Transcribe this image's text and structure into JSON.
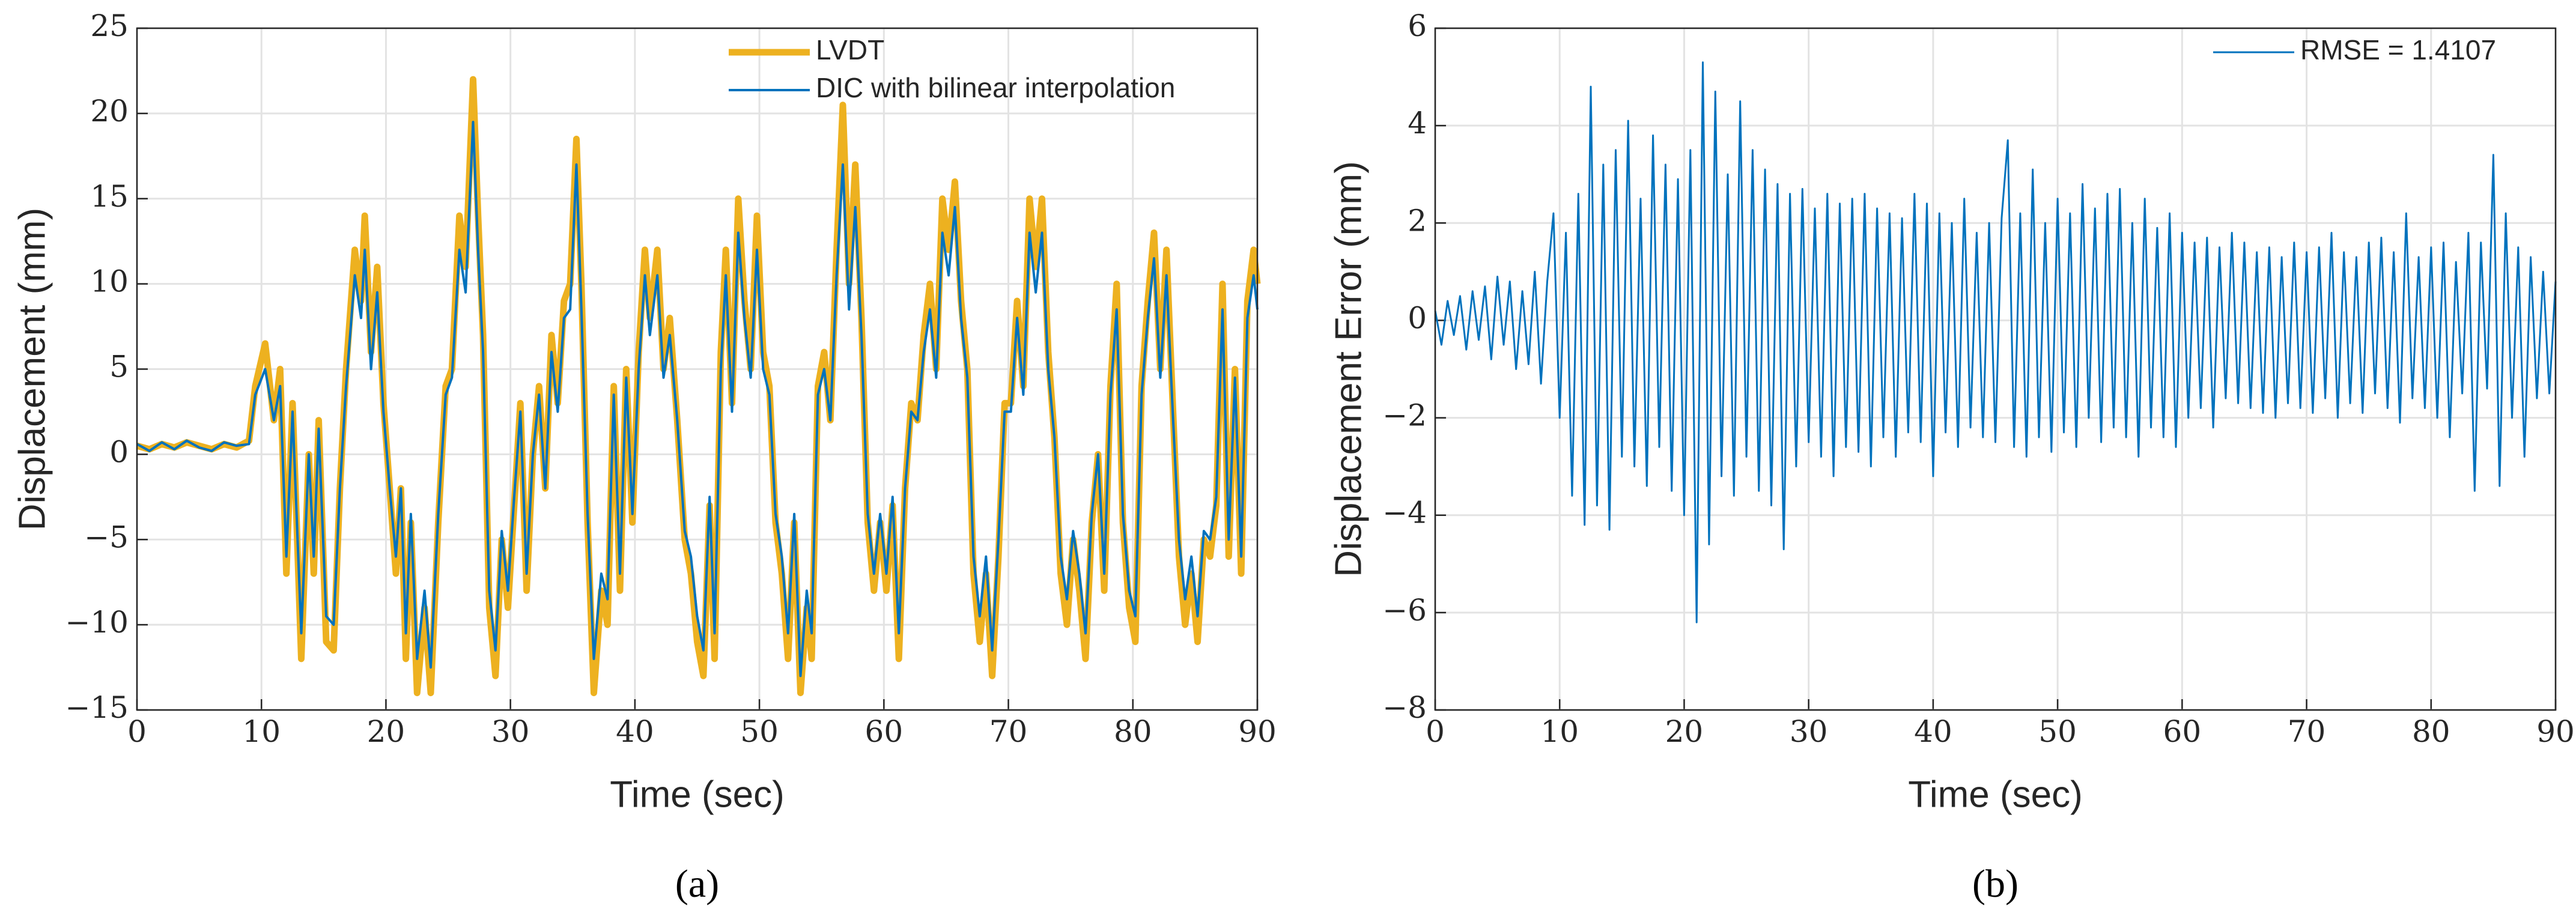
{
  "chart_data": [
    {
      "type": "line",
      "xlabel": "Time (sec)",
      "ylabel": "Displacement (mm)",
      "caption": "(a)",
      "xlim": [
        0,
        90
      ],
      "ylim": [
        -15,
        25
      ],
      "xticks": [
        0,
        10,
        20,
        30,
        40,
        50,
        60,
        70,
        80,
        90
      ],
      "yticks": [
        {
          "value": -15,
          "label": "−15"
        },
        {
          "value": -10,
          "label": "−10"
        },
        {
          "value": -5,
          "label": "−5"
        },
        0,
        5,
        10,
        15,
        20,
        25
      ],
      "grid": true,
      "legend": "northeast",
      "x": [
        0,
        1,
        2,
        3,
        4,
        5,
        6,
        7,
        8,
        9,
        9.5,
        10.3,
        11,
        11.5,
        12,
        12.5,
        13.2,
        13.8,
        14.2,
        14.6,
        15.2,
        15.8,
        16.3,
        16.8,
        17.5,
        18,
        18.3,
        18.8,
        19.3,
        19.8,
        20.3,
        20.8,
        21.2,
        21.6,
        22,
        22.5,
        23.1,
        23.6,
        24.2,
        24.8,
        25.3,
        25.9,
        26.4,
        27,
        27.4,
        27.8,
        28.3,
        28.8,
        29.3,
        29.8,
        30.3,
        30.8,
        31.3,
        31.8,
        32.3,
        32.8,
        33.3,
        33.8,
        34.3,
        34.8,
        35.3,
        35.7,
        36.2,
        36.7,
        37.3,
        37.8,
        38.3,
        38.8,
        39.3,
        39.8,
        40.3,
        40.8,
        41.2,
        41.8,
        42.3,
        42.8,
        43.4,
        44,
        44.5,
        45,
        45.5,
        46,
        46.4,
        46.9,
        47.3,
        47.8,
        48.3,
        48.8,
        49.3,
        49.8,
        50.3,
        50.8,
        51.3,
        51.8,
        52.3,
        52.8,
        53.3,
        53.8,
        54.2,
        54.7,
        55.2,
        55.7,
        56.2,
        56.7,
        57.2,
        57.7,
        58.2,
        58.7,
        59.2,
        59.7,
        60.2,
        60.7,
        61.2,
        61.7,
        62.2,
        62.7,
        63.2,
        63.7,
        64.2,
        64.7,
        65.2,
        65.7,
        66.2,
        66.7,
        67.2,
        67.7,
        68.2,
        68.7,
        69.2,
        69.7,
        70.2,
        70.7,
        71.2,
        71.7,
        72.2,
        72.7,
        73.2,
        73.7,
        74.2,
        74.7,
        75.2,
        75.7,
        76.2,
        76.7,
        77.2,
        77.7,
        78.2,
        78.7,
        79.2,
        79.7,
        80.2,
        80.7,
        81.2,
        81.7,
        82.2,
        82.7,
        83.2,
        83.7,
        84.2,
        84.7,
        85.2,
        85.7,
        86.2,
        86.7,
        87.2,
        87.7,
        88.2,
        88.7,
        89.2,
        89.7,
        90
      ],
      "series": [
        {
          "name": "LVDT",
          "color": "#EDB120",
          "width": 11,
          "values": [
            0.5,
            0.3,
            0.6,
            0.4,
            0.7,
            0.5,
            0.3,
            0.6,
            0.4,
            0.8,
            4,
            6.5,
            2,
            5,
            -7,
            3,
            -12,
            0,
            -7,
            2,
            -11,
            -11.5,
            -2,
            5,
            12,
            9,
            14,
            6,
            11,
            3,
            -2,
            -7,
            -2,
            -12,
            -4,
            -14,
            -9,
            -14,
            -4,
            4,
            5,
            14,
            11,
            22,
            14,
            7,
            -9,
            -13,
            -5,
            -9,
            -3,
            3,
            -8,
            0,
            4,
            -2,
            7,
            3,
            9,
            10,
            18.5,
            10,
            -4,
            -14,
            -8,
            -10,
            4,
            -8,
            5,
            -4,
            6,
            12,
            8,
            12,
            5,
            8,
            2,
            -5,
            -7,
            -11,
            -13,
            -3,
            -12,
            6,
            12,
            3,
            15,
            9,
            5,
            14,
            6,
            4,
            -4,
            -7,
            -12,
            -4,
            -14,
            -9,
            -12,
            4,
            6,
            2,
            12,
            20.5,
            10,
            17,
            8,
            -4,
            -8,
            -4,
            -8,
            -3,
            -12,
            -2,
            3,
            2,
            7,
            10,
            5,
            15,
            12,
            16,
            9,
            5,
            -7,
            -11,
            -7,
            -13,
            -6,
            3,
            3,
            9,
            4,
            15,
            11,
            15,
            6,
            1,
            -7,
            -10,
            -5,
            -8,
            -12,
            -4,
            0,
            -8,
            4,
            10,
            -4,
            -9,
            -11,
            4,
            9,
            13,
            5,
            12,
            3,
            -6,
            -10,
            -7,
            -11,
            -5,
            -6,
            -3,
            10,
            -6,
            5,
            -7,
            9,
            12,
            10
          ]
        },
        {
          "name": "DIC with bilinear interpolation",
          "color": "#0072BD",
          "width": 4,
          "values": [
            0.6,
            0.2,
            0.7,
            0.3,
            0.8,
            0.4,
            0.2,
            0.7,
            0.5,
            0.6,
            3.5,
            5,
            2,
            4,
            -6,
            2.5,
            -10.5,
            0,
            -6,
            1.5,
            -9.5,
            -10,
            -2,
            4,
            10.5,
            8,
            12,
            5,
            9.5,
            2.5,
            -2,
            -6,
            -2,
            -10.5,
            -3.5,
            -12,
            -8,
            -12.5,
            -3.5,
            3.5,
            4.5,
            12,
            9.5,
            19.5,
            12,
            6,
            -8,
            -11.5,
            -4.5,
            -8,
            -2.5,
            2.5,
            -7,
            0,
            3.5,
            -2,
            6,
            2.5,
            8,
            8.5,
            17,
            8.5,
            -3.5,
            -12,
            -7,
            -8.5,
            3.5,
            -7,
            4.5,
            -3.5,
            5,
            10.5,
            7,
            10.5,
            4.5,
            7,
            2,
            -4.5,
            -6,
            -9.5,
            -11.5,
            -2.5,
            -10.5,
            5,
            10.5,
            2.5,
            13,
            8,
            4.5,
            12,
            5,
            3.5,
            -3.5,
            -6,
            -10.5,
            -3.5,
            -13,
            -8,
            -10.5,
            3.5,
            5,
            2,
            10.5,
            17,
            8.5,
            14.5,
            7,
            -3.5,
            -7,
            -3.5,
            -7,
            -2.5,
            -10.5,
            -2,
            2.5,
            2,
            6,
            8.5,
            4.5,
            13,
            10.5,
            14.5,
            8,
            4.5,
            -6,
            -9.5,
            -6,
            -11.5,
            -5,
            2.5,
            2.5,
            8,
            3.5,
            13,
            9.5,
            13,
            5,
            1,
            -6,
            -8.5,
            -4.5,
            -7,
            -10.5,
            -3.5,
            0,
            -7,
            3.5,
            8.5,
            -3.5,
            -8,
            -9.5,
            3.5,
            8,
            11.5,
            4.5,
            10.5,
            2.5,
            -5,
            -8.5,
            -6,
            -9.5,
            -4.5,
            -5,
            -2.5,
            8.5,
            -5,
            4.5,
            -6,
            8,
            10.5,
            8.5
          ]
        }
      ]
    },
    {
      "type": "line",
      "xlabel": "Time (sec)",
      "ylabel": "Displacement Error (mm)",
      "caption": "(b)",
      "xlim": [
        0,
        90
      ],
      "ylim": [
        -8,
        6
      ],
      "xticks": [
        0,
        10,
        20,
        30,
        40,
        50,
        60,
        70,
        80,
        90
      ],
      "yticks": [
        {
          "value": -8,
          "label": "−8"
        },
        {
          "value": -6,
          "label": "−6"
        },
        {
          "value": -4,
          "label": "−4"
        },
        {
          "value": -2,
          "label": "−2"
        },
        0,
        2,
        4,
        6
      ],
      "grid": true,
      "legend": "northeast",
      "x": [
        0,
        0.5,
        1,
        1.5,
        2,
        2.5,
        3,
        3.5,
        4,
        4.5,
        5,
        5.5,
        6,
        6.5,
        7,
        7.5,
        8,
        8.5,
        9,
        9.5,
        10,
        10.5,
        11,
        11.5,
        12,
        12.5,
        13,
        13.5,
        14,
        14.5,
        15,
        15.5,
        16,
        16.5,
        17,
        17.5,
        18,
        18.5,
        19,
        19.5,
        20,
        20.5,
        21,
        21.5,
        22,
        22.5,
        23,
        23.5,
        24,
        24.5,
        25,
        25.5,
        26,
        26.5,
        27,
        27.5,
        28,
        28.5,
        29,
        29.5,
        30,
        30.5,
        31,
        31.5,
        32,
        32.5,
        33,
        33.5,
        34,
        34.5,
        35,
        35.5,
        36,
        36.5,
        37,
        37.5,
        38,
        38.5,
        39,
        39.5,
        40,
        40.5,
        41,
        41.5,
        42,
        42.5,
        43,
        43.5,
        44,
        44.5,
        45,
        45.5,
        46,
        46.5,
        47,
        47.5,
        48,
        48.5,
        49,
        49.5,
        50,
        50.5,
        51,
        51.5,
        52,
        52.5,
        53,
        53.5,
        54,
        54.5,
        55,
        55.5,
        56,
        56.5,
        57,
        57.5,
        58,
        58.5,
        59,
        59.5,
        60,
        60.5,
        61,
        61.5,
        62,
        62.5,
        63,
        63.5,
        64,
        64.5,
        65,
        65.5,
        66,
        66.5,
        67,
        67.5,
        68,
        68.5,
        69,
        69.5,
        70,
        70.5,
        71,
        71.5,
        72,
        72.5,
        73,
        73.5,
        74,
        74.5,
        75,
        75.5,
        76,
        76.5,
        77,
        77.5,
        78,
        78.5,
        79,
        79.5,
        80,
        80.5,
        81,
        81.5,
        82,
        82.5,
        83,
        83.5,
        84,
        84.5,
        85,
        85.5,
        86,
        86.5,
        87,
        87.5,
        88,
        88.5,
        89,
        89.5,
        90
      ],
      "series": [
        {
          "name": "RMSE = 1.4107",
          "color": "#0072BD",
          "width": 3,
          "values": [
            0.2,
            -0.5,
            0.4,
            -0.3,
            0.5,
            -0.6,
            0.6,
            -0.4,
            0.7,
            -0.8,
            0.9,
            -0.5,
            0.8,
            -1.0,
            0.6,
            -0.9,
            1.0,
            -1.3,
            0.8,
            2.2,
            -2.0,
            1.8,
            -3.6,
            2.6,
            -4.2,
            4.8,
            -3.8,
            3.2,
            -4.3,
            3.5,
            -2.8,
            4.1,
            -3.0,
            2.5,
            -3.4,
            3.8,
            -2.6,
            3.2,
            -3.5,
            2.9,
            -4.0,
            3.5,
            -6.2,
            5.3,
            -4.6,
            4.7,
            -3.2,
            3.0,
            -3.6,
            4.5,
            -2.8,
            3.5,
            -3.5,
            3.1,
            -3.8,
            2.8,
            -4.7,
            2.6,
            -3.0,
            2.7,
            -2.5,
            2.3,
            -2.8,
            2.6,
            -3.2,
            2.4,
            -2.6,
            2.5,
            -2.7,
            2.6,
            -3.0,
            2.3,
            -2.4,
            2.2,
            -2.8,
            2.1,
            -2.3,
            2.6,
            -2.5,
            2.4,
            -3.2,
            2.2,
            -2.3,
            2.0,
            -2.6,
            2.5,
            -2.2,
            1.8,
            -2.4,
            2.0,
            -2.5,
            2.1,
            3.7,
            -2.6,
            2.2,
            -2.8,
            3.1,
            -2.4,
            2.0,
            -2.7,
            2.5,
            -2.3,
            2.2,
            -2.6,
            2.8,
            -2.0,
            2.3,
            -2.5,
            2.6,
            -2.2,
            2.7,
            -2.4,
            2.0,
            -2.8,
            2.5,
            -2.2,
            1.9,
            -2.4,
            2.2,
            -2.6,
            1.8,
            -2.0,
            1.6,
            -1.8,
            1.7,
            -2.2,
            1.5,
            -1.6,
            1.8,
            -1.7,
            1.6,
            -1.8,
            1.4,
            -1.9,
            1.5,
            -2.0,
            1.3,
            -1.7,
            1.6,
            -1.8,
            1.4,
            -1.9,
            1.5,
            -1.6,
            1.8,
            -2.0,
            1.4,
            -1.7,
            1.3,
            -1.9,
            1.6,
            -1.5,
            1.7,
            -1.8,
            1.4,
            -2.1,
            2.2,
            -1.6,
            1.3,
            -1.8,
            1.5,
            -2.0,
            1.6,
            -2.4,
            1.2,
            -1.5,
            1.8,
            -3.5,
            1.6,
            -1.4,
            3.4,
            -3.4,
            2.2,
            -2.0,
            1.5,
            -2.8,
            1.3,
            -1.6,
            1.0,
            -1.5,
            0.8
          ]
        }
      ]
    }
  ]
}
